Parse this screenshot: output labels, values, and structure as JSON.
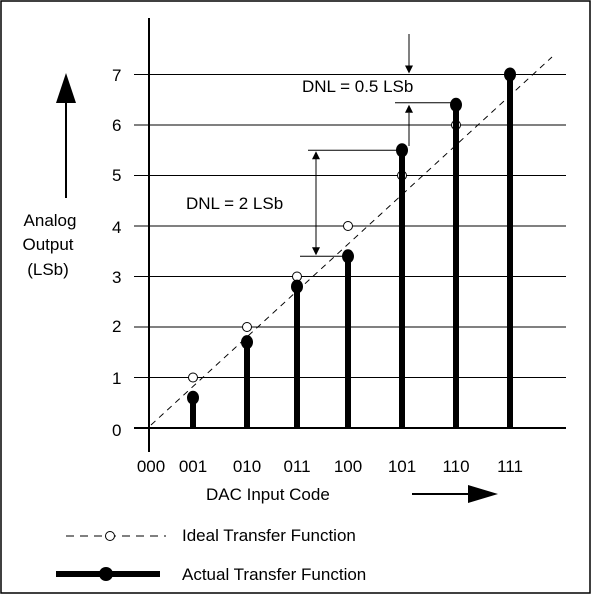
{
  "chart_data": {
    "type": "scatter",
    "xlabel": "DAC Input Code",
    "ylabel": [
      "Analog",
      "Output",
      "(LSb)"
    ],
    "x_categories": [
      "000",
      "001",
      "010",
      "011",
      "100",
      "101",
      "110",
      "111"
    ],
    "y_ticks": [
      "0",
      "1",
      "2",
      "3",
      "4",
      "5",
      "6",
      "7"
    ],
    "ylim": [
      0,
      7
    ],
    "grid": true,
    "series": [
      {
        "name": "Ideal Transfer Function",
        "style": "dashed line, open circle markers",
        "x": [
          "000",
          "001",
          "010",
          "011",
          "100",
          "101",
          "110",
          "111"
        ],
        "y": [
          0,
          1,
          2,
          3,
          4,
          5,
          6,
          7
        ]
      },
      {
        "name": "Actual Transfer Function",
        "style": "thick bars, filled circle markers",
        "x": [
          "001",
          "010",
          "011",
          "100",
          "101",
          "110",
          "111"
        ],
        "y": [
          0.6,
          1.7,
          2.8,
          3.4,
          5.5,
          6.4,
          7.0
        ]
      }
    ],
    "annotations": [
      {
        "text": "DNL = 2 LSb",
        "between_y": [
          3.4,
          5.5
        ]
      },
      {
        "text": "DNL = 0.5 LSb",
        "between_y": [
          6.4,
          7.0
        ]
      }
    ],
    "legend_position": "bottom"
  },
  "colors": {
    "ink": "#000000",
    "background": "#ffffff"
  }
}
